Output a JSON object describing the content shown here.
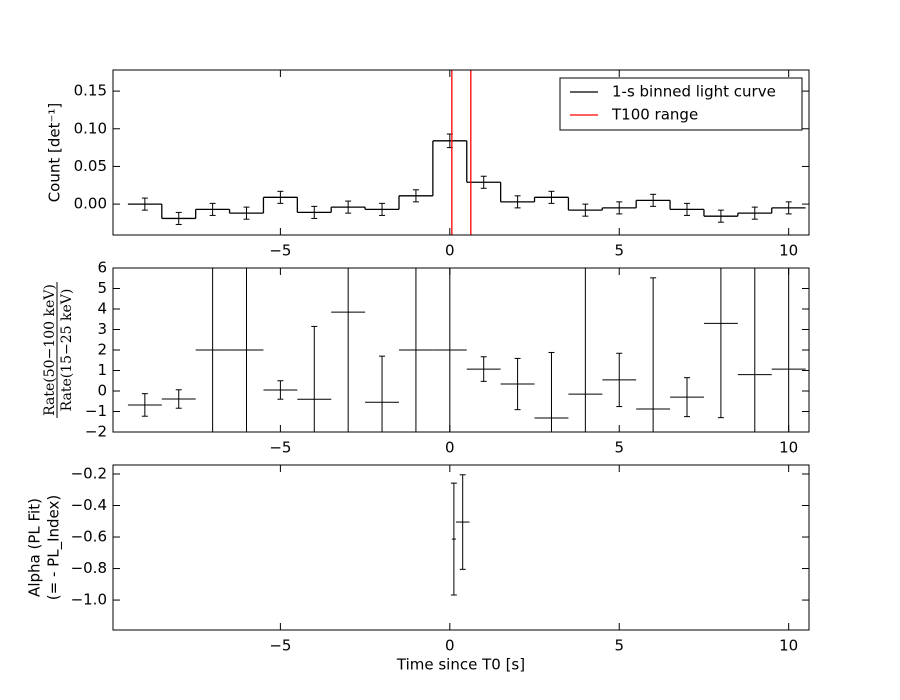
{
  "chart_data": [
    {
      "type": "step",
      "ylabel": "Count [det⁻¹]",
      "xlim": [
        -9.94,
        10.6
      ],
      "ylim": [
        -0.041,
        0.178
      ],
      "xticks": [
        {
          "value": -5,
          "label": "−5"
        },
        0,
        5,
        10
      ],
      "yticks": [
        {
          "value": 0,
          "label": "0.00"
        },
        0.05,
        {
          "value": 0.1,
          "label": "0.10"
        },
        0.15
      ],
      "legend": "upper right",
      "series": [
        {
          "name": "1-s binned light curve",
          "color": "#000000",
          "x": [
            -9,
            -8,
            -7,
            -6,
            -5,
            -4,
            -3,
            -2,
            -1,
            0,
            1,
            2,
            3,
            4,
            5,
            6,
            7,
            8,
            9,
            10
          ],
          "values": [
            0.0,
            -0.019,
            -0.007,
            -0.012,
            0.009,
            -0.011,
            -0.004,
            -0.007,
            0.011,
            0.084,
            0.029,
            0.003,
            0.009,
            -0.008,
            -0.005,
            0.005,
            -0.007,
            -0.016,
            -0.012,
            -0.005
          ],
          "errors": [
            0.008,
            0.008,
            0.008,
            0.008,
            0.008,
            0.008,
            0.008,
            0.008,
            0.008,
            0.009,
            0.008,
            0.008,
            0.008,
            0.008,
            0.008,
            0.008,
            0.008,
            0.008,
            0.008,
            0.008
          ]
        },
        {
          "name": "T100 range",
          "color": "#ff0000",
          "x": [
            0.06,
            0.62
          ]
        }
      ]
    },
    {
      "type": "errorbar",
      "ylabel": [
        "Rate(50−100 keV)",
        "Rate(15−25 keV)"
      ],
      "ylabel_fraction": true,
      "xlim": [
        -9.94,
        10.6
      ],
      "ylim": [
        -2,
        6
      ],
      "xticks": [
        {
          "value": -5,
          "label": "−5"
        },
        0,
        5,
        10
      ],
      "yticks": [
        {
          "value": -2,
          "label": "−2"
        },
        {
          "value": -1,
          "label": "−1"
        },
        0,
        1,
        2,
        3,
        4,
        5,
        6
      ],
      "series": [
        {
          "color": "#000000",
          "x": [
            -9,
            -8,
            -7,
            -6,
            -5,
            -4,
            -3,
            -2,
            -1,
            0,
            1,
            2,
            3,
            4,
            5,
            6,
            7,
            8,
            9,
            10
          ],
          "xerr": [
            0.5,
            0.5,
            0.5,
            0.5,
            0.5,
            0.5,
            0.5,
            0.5,
            0.5,
            0.5,
            0.5,
            0.5,
            0.5,
            0.5,
            0.5,
            0.5,
            0.5,
            0.5,
            0.5,
            0.5
          ],
          "values": [
            -0.68,
            -0.39,
            2,
            2,
            0.05,
            -0.4,
            3.85,
            -0.55,
            2,
            2,
            1.07,
            0.34,
            -1.32,
            -0.15,
            0.54,
            -0.88,
            -0.3,
            3.3,
            0.8,
            1.07
          ],
          "errors": [
            0.55,
            0.45,
            10,
            10,
            0.45,
            3.55,
            10,
            2.25,
            10,
            10,
            0.6,
            1.25,
            3.2,
            10,
            1.3,
            6.4,
            0.95,
            4.6,
            10,
            10
          ]
        }
      ]
    },
    {
      "type": "errorbar",
      "ylabel": [
        "Alpha (PL Fit)",
        "(= - PL_Index)"
      ],
      "xlabel": "Time since T0 [s]",
      "xlim": [
        -9.94,
        10.6
      ],
      "ylim": [
        -1.19,
        -0.143
      ],
      "xticks": [
        {
          "value": -5,
          "label": "−5"
        },
        0,
        5,
        10
      ],
      "yticks": [
        {
          "value": -1.0,
          "label": "−1.0"
        },
        {
          "value": -0.8,
          "label": "−0.8"
        },
        {
          "value": -0.6,
          "label": "−0.6"
        },
        {
          "value": -0.4,
          "label": "−0.4"
        },
        {
          "value": -0.2,
          "label": "−0.2"
        }
      ],
      "series": [
        {
          "color": "#000000",
          "x": [
            0.12,
            0.38
          ],
          "xerr": [
            0.06,
            0.2
          ],
          "values": [
            -0.613,
            -0.505
          ],
          "errors": [
            0.355,
            0.3
          ]
        }
      ]
    }
  ]
}
